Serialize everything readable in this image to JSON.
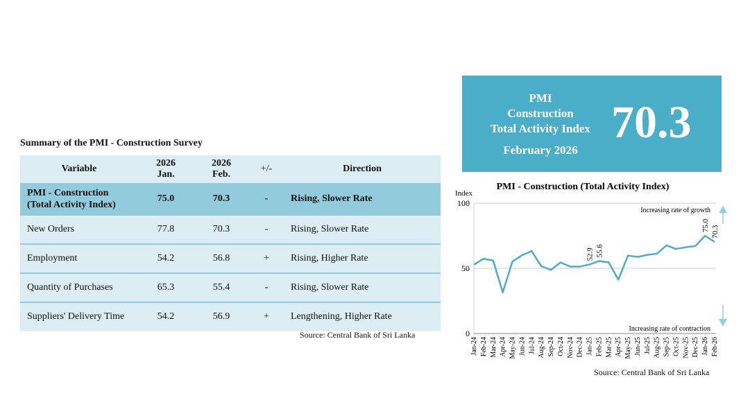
{
  "table": {
    "title": "Summary of the PMI - Construction Survey",
    "headers": {
      "variable": "Variable",
      "jan": "2026\nJan.",
      "feb": "2026\nFeb.",
      "change": "+/-",
      "direction": "Direction"
    },
    "rows": [
      {
        "variable": "PMI - Construction (Total Activity Index)",
        "jan": "75.0",
        "feb": "70.3",
        "change": "-",
        "direction": "Rising, Slower Rate"
      },
      {
        "variable": "New Orders",
        "jan": "77.8",
        "feb": "70.3",
        "change": "-",
        "direction": "Rising, Slower Rate"
      },
      {
        "variable": "Employment",
        "jan": "54.2",
        "feb": "56.8",
        "change": "+",
        "direction": "Rising, Higher Rate"
      },
      {
        "variable": "Quantity of Purchases",
        "jan": "65.3",
        "feb": "55.4",
        "change": "-",
        "direction": "Rising, Slower Rate"
      },
      {
        "variable": "Suppliers' Delivery Time",
        "jan": "54.2",
        "feb": "56.9",
        "change": "+",
        "direction": "Lengthening, Higher Rate"
      }
    ],
    "source": "Source: Central Bank of Sri Lanka"
  },
  "kpi": {
    "label": "PMI\nConstruction\nTotal Activity Index",
    "date": "February 2026",
    "value": "70.3",
    "color": "#4aaec8"
  },
  "chart_data": {
    "type": "line",
    "title": "PMI - Construction (Total Activity Index)",
    "ylabel": "Index",
    "ylim": [
      0,
      100
    ],
    "yticks": [
      "0",
      "50",
      "100"
    ],
    "grid": true,
    "line_color": "#4aaec8",
    "categories": [
      "Jan-24",
      "Feb-24",
      "Mar-24",
      "Apr-24",
      "May-24",
      "Jun-24",
      "Jul-24",
      "Aug-24",
      "Sep-24",
      "Oct-24",
      "Nov-24",
      "Dec-24",
      "Jan-25",
      "Feb-25",
      "Mar-25",
      "Apr-25",
      "May-25",
      "Jun-25",
      "Jul-25",
      "Aug-25",
      "Sep-25",
      "Oct-25",
      "Nov-25",
      "Dec-25",
      "Jan-26",
      "Feb-26"
    ],
    "values": [
      52.8,
      57.3,
      56.0,
      31.5,
      55.2,
      60.0,
      63.2,
      51.6,
      48.8,
      54.5,
      51.3,
      51.3,
      52.9,
      55.6,
      54.6,
      41.3,
      59.8,
      58.7,
      60.3,
      61.2,
      67.6,
      64.8,
      66.2,
      67.0,
      75.0,
      70.3
    ],
    "data_labels": [
      {
        "category": "Jan-25",
        "text": "52.9"
      },
      {
        "category": "Feb-25",
        "text": "55.6"
      },
      {
        "category": "Jan-26",
        "text": "75.0"
      },
      {
        "category": "Feb-26",
        "text": "70.3"
      }
    ],
    "annotations": {
      "top": "Increasing rate of growth",
      "bottom": "Increasing rate of contraction"
    },
    "source": "Source: Central Bank of Sri Lanka"
  }
}
